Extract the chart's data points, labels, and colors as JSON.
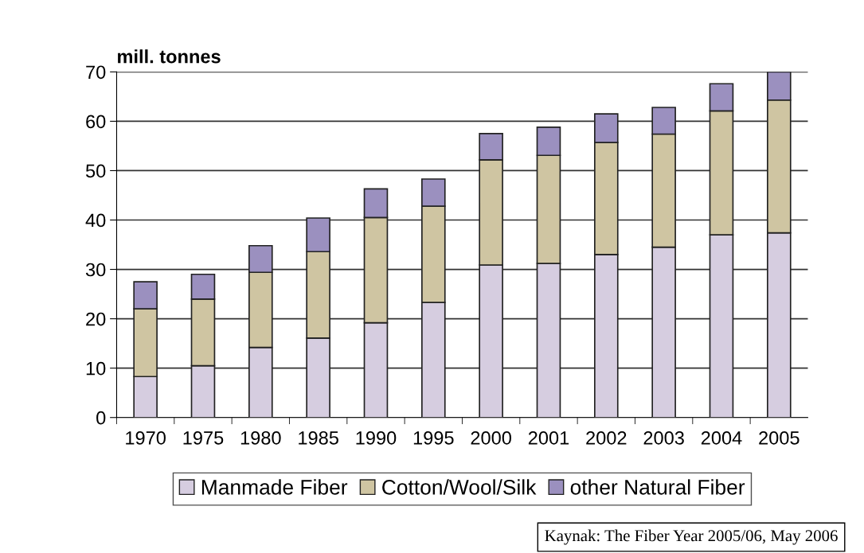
{
  "chart_data": {
    "type": "bar",
    "stacked": true,
    "ylabel": "mill. tonnes",
    "categories": [
      "1970",
      "1975",
      "1980",
      "1985",
      "1990",
      "1995",
      "2000",
      "2001",
      "2002",
      "2003",
      "2004",
      "2005"
    ],
    "series": [
      {
        "name": "Manmade Fiber",
        "color": "#d6cde0",
        "values": [
          8.3,
          10.5,
          14.2,
          16.1,
          19.2,
          23.3,
          30.9,
          31.2,
          33.0,
          34.5,
          37.0,
          37.4
        ]
      },
      {
        "name": "Cotton/Wool/Silk",
        "color": "#cfc5a2",
        "values": [
          13.7,
          13.5,
          15.2,
          17.5,
          21.3,
          19.5,
          21.3,
          21.9,
          22.7,
          22.9,
          25.1,
          26.9
        ]
      },
      {
        "name": "other Natural Fiber",
        "color": "#9b90bf",
        "values": [
          5.5,
          5.0,
          5.4,
          6.8,
          5.8,
          5.5,
          5.3,
          5.7,
          5.8,
          5.4,
          5.5,
          5.7
        ]
      }
    ],
    "ylim": [
      0,
      70
    ],
    "yticks": [
      0,
      10,
      20,
      30,
      40,
      50,
      60,
      70
    ],
    "grid": "y",
    "legend": "bottom",
    "annotations": [
      "Kaynak: The Fiber Year 2005/06, May 2006"
    ]
  }
}
